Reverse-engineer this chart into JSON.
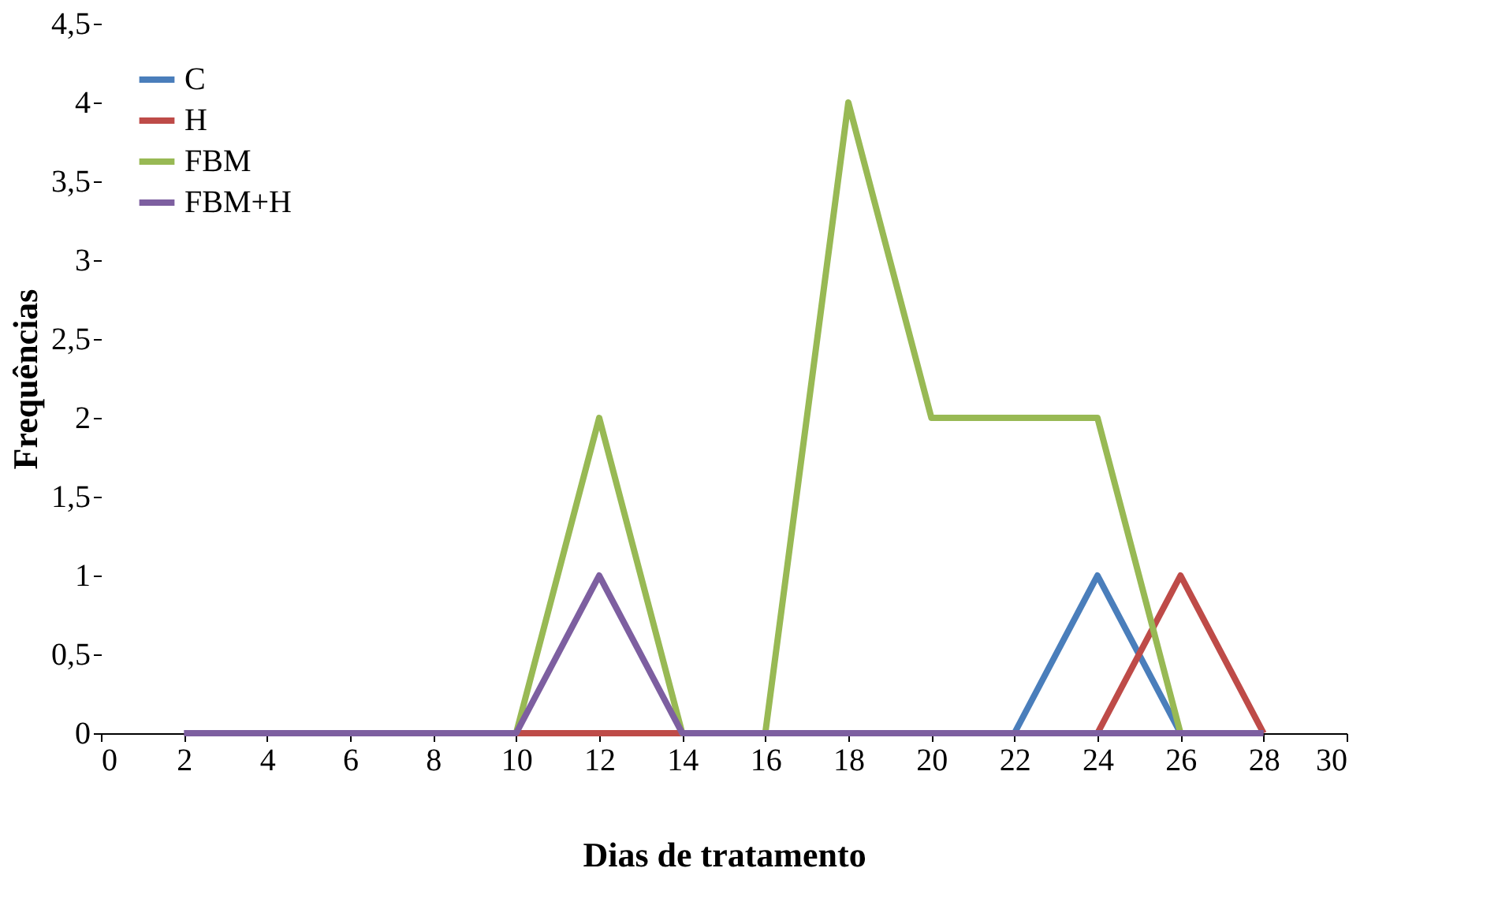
{
  "chart_data": {
    "type": "line",
    "xlabel": "Dias de tratamento",
    "ylabel": "Frequências",
    "x": [
      2,
      4,
      6,
      8,
      10,
      12,
      14,
      16,
      18,
      20,
      22,
      24,
      26,
      28
    ],
    "series": [
      {
        "name": "C",
        "color": "#4a7ebb",
        "values": [
          null,
          null,
          null,
          null,
          null,
          null,
          null,
          null,
          null,
          null,
          0,
          1,
          0,
          null
        ]
      },
      {
        "name": "H",
        "color": "#be4b48",
        "values": [
          null,
          null,
          null,
          null,
          0,
          0,
          0,
          null,
          null,
          null,
          null,
          0,
          1,
          0
        ]
      },
      {
        "name": "FBM",
        "color": "#98b954",
        "values": [
          null,
          null,
          null,
          null,
          0,
          2,
          0,
          0,
          4,
          2,
          2,
          2,
          0,
          null
        ]
      },
      {
        "name": "FBM+H",
        "color": "#7d5fa0",
        "values": [
          0,
          0,
          0,
          0,
          0,
          1,
          0,
          0,
          0,
          0,
          0,
          0,
          0,
          0
        ]
      }
    ],
    "xlim": [
      0,
      30
    ],
    "xticks": [
      0,
      2,
      4,
      6,
      8,
      10,
      12,
      14,
      16,
      18,
      20,
      22,
      24,
      26,
      28,
      30
    ],
    "ylim": [
      0,
      4.5
    ],
    "yticks": [
      0,
      {
        "value": 0.5,
        "label": "0,5"
      },
      1,
      {
        "value": 1.5,
        "label": "1,5"
      },
      2,
      {
        "value": 2.5,
        "label": "2,5"
      },
      3,
      {
        "value": 3.5,
        "label": "3,5"
      },
      4,
      {
        "value": 4.5,
        "label": "4,5"
      }
    ],
    "legend": "top left",
    "grid": false,
    "marker": "none",
    "line_style": "solid"
  }
}
